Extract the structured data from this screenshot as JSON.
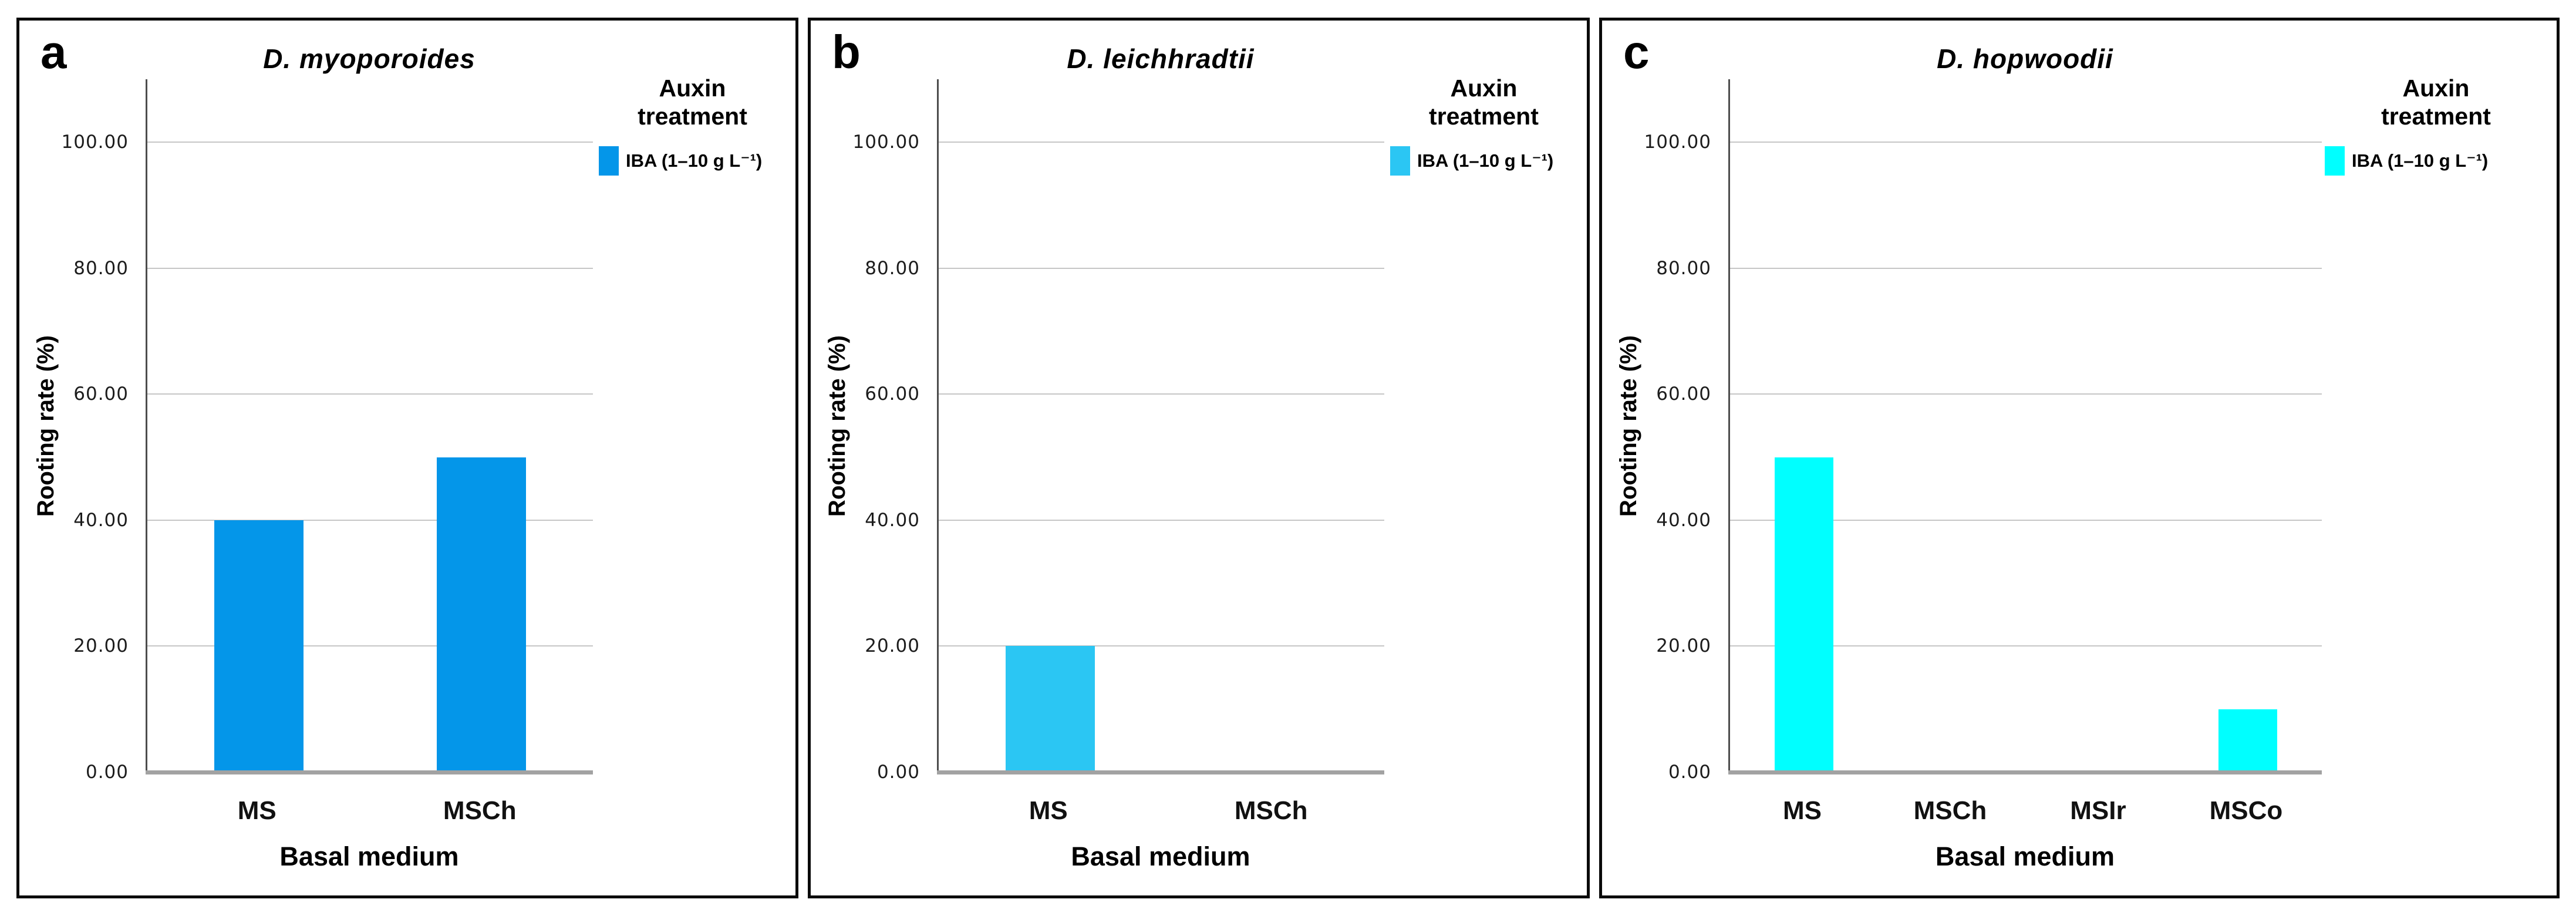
{
  "chart_data": [
    {
      "type": "bar",
      "panel_letter": "a",
      "title": "D. myoporoides",
      "ylabel": "Rooting rate (%)",
      "xlabel": "Basal medium",
      "legend_title": "Auxin treatment",
      "legend_position": "right",
      "categories": [
        "MS",
        "MSCh"
      ],
      "series": [
        {
          "name": "IBA (1–10 g L⁻¹)",
          "values": [
            40,
            50
          ],
          "color": "#0496e9"
        }
      ],
      "ylim": [
        0,
        110
      ],
      "yticks": [
        0,
        20,
        40,
        60,
        80,
        100
      ],
      "ytick_labels": [
        "0.00",
        "20.00",
        "40.00",
        "60.00",
        "80.00",
        "100.00"
      ],
      "grid": true
    },
    {
      "type": "bar",
      "panel_letter": "b",
      "title": "D. leichhradtii",
      "ylabel": "Rooting rate (%)",
      "xlabel": "Basal medium",
      "legend_title": "Auxin treatment",
      "legend_position": "right",
      "categories": [
        "MS",
        "MSCh"
      ],
      "series": [
        {
          "name": "IBA (1–10 g L⁻¹)",
          "values": [
            20,
            0
          ],
          "color": "#2bc6f3"
        }
      ],
      "ylim": [
        0,
        110
      ],
      "yticks": [
        0,
        20,
        40,
        60,
        80,
        100
      ],
      "ytick_labels": [
        "0.00",
        "20.00",
        "40.00",
        "60.00",
        "80.00",
        "100.00"
      ],
      "grid": true
    },
    {
      "type": "bar",
      "panel_letter": "c",
      "title": "D. hopwoodii",
      "ylabel": "Rooting rate (%)",
      "xlabel": "Basal medium",
      "legend_title": "Auxin treatment",
      "legend_position": "right",
      "categories": [
        "MS",
        "MSCh",
        "MSIr",
        "MSCo"
      ],
      "series": [
        {
          "name": "IBA (1–10 g L⁻¹)",
          "values": [
            50,
            0,
            0,
            10
          ],
          "color": "#00ffff"
        }
      ],
      "ylim": [
        0,
        110
      ],
      "yticks": [
        0,
        20,
        40,
        60,
        80,
        100
      ],
      "ytick_labels": [
        "0.00",
        "20.00",
        "40.00",
        "60.00",
        "80.00",
        "100.00"
      ],
      "grid": true
    }
  ]
}
